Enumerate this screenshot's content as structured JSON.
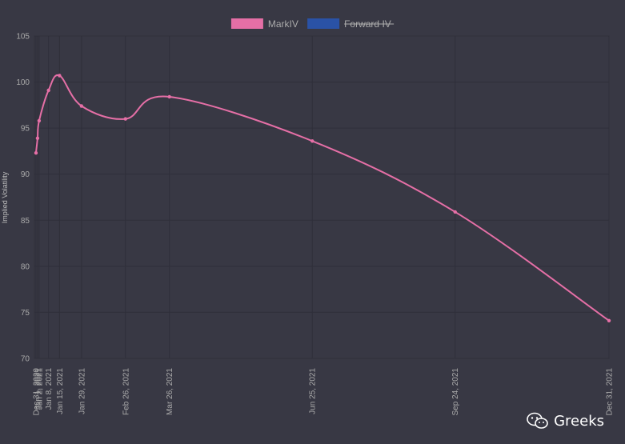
{
  "chart_data": {
    "type": "line",
    "legend": [
      {
        "name": "MarkIV",
        "color": "#e56fa6",
        "hidden": false
      },
      {
        "name": "Forward IV",
        "color": "#2a52a6",
        "hidden": true
      }
    ],
    "ylabel": "Implied Volatility",
    "ylim": [
      70,
      105
    ],
    "yticks": [
      70,
      75,
      80,
      85,
      90,
      95,
      100,
      105
    ],
    "x_labels": [
      "Dec 31, 2020",
      "Jan 1, 2021",
      "Jan 2, 2021",
      "Jan 8, 2021",
      "Jan 15, 2021",
      "Jan 29, 2021",
      "Feb 26, 2021",
      "Mar 26, 2021",
      "Jun 25, 2021",
      "Sep 24, 2021",
      "Dec 31, 2021"
    ],
    "x_dates": [
      "2020-12-31",
      "2021-01-01",
      "2021-01-02",
      "2021-01-08",
      "2021-01-15",
      "2021-01-29",
      "2021-02-26",
      "2021-03-26",
      "2021-06-25",
      "2021-09-24",
      "2021-12-31"
    ],
    "x_range": [
      "2020-12-30",
      "2021-12-31"
    ],
    "series": [
      {
        "name": "MarkIV",
        "color": "#e56fa6",
        "values": [
          92.3,
          93.9,
          95.8,
          99.1,
          100.7,
          97.4,
          96.0,
          98.4,
          93.6,
          85.9,
          74.1
        ]
      }
    ],
    "grid": true,
    "legend_position": "top-center"
  },
  "watermark": {
    "text": "Greeks",
    "icon": "wechat-icon"
  }
}
